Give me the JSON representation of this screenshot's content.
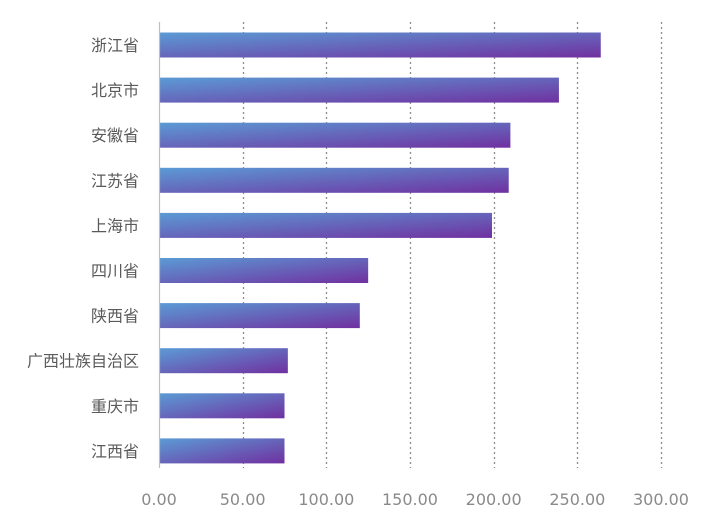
{
  "chart_data": {
    "type": "bar",
    "orientation": "horizontal",
    "categories": [
      "浙江省",
      "北京市",
      "安徽省",
      "江苏省",
      "上海市",
      "四川省",
      "陕西省",
      "广西壮族自治区",
      "重庆市",
      "江西省"
    ],
    "values": [
      264,
      239,
      210,
      209,
      199,
      125,
      120,
      77,
      75,
      75
    ],
    "xlim": [
      0,
      300
    ],
    "x_ticks": [
      "0.00",
      "50.00",
      "100.00",
      "150.00",
      "200.00",
      "250.00",
      "300.00"
    ],
    "x_tick_values": [
      0,
      50,
      100,
      150,
      200,
      250,
      300
    ],
    "grid": "vertical-dotted",
    "legend": "none",
    "bar_gradient": [
      "#5b9bd5",
      "#7030a0"
    ],
    "axis_color": "#bfbfbf",
    "grid_color": "#8c8c8c",
    "label_color": "#5a5a5a",
    "tick_color": "#8a8a8a"
  }
}
